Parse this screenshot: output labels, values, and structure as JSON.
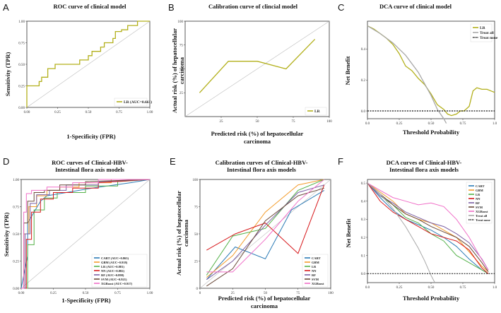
{
  "colors": {
    "olive": "#b3b01c",
    "cart": "#2c7bb6",
    "gbm": "#f39c2b",
    "lr": "#55b24a",
    "nn": "#d7191c",
    "rf": "#7b5fa3",
    "svm": "#6b4a3a",
    "xgb": "#f06fc8",
    "gray": "#a8a8a8",
    "black": "#111111"
  },
  "chart_data": [
    {
      "panel": "A",
      "type": "line",
      "subtype": "roc",
      "title": "ROC curve of clinical model",
      "xlabel": "1-Specificity (FPR)",
      "ylabel": "Sensitivity (TPR)",
      "xlim": [
        0,
        1
      ],
      "ylim": [
        0,
        1
      ],
      "xticks": [
        "0.00",
        "0.25",
        "0.50",
        "0.75",
        "1.00"
      ],
      "yticks": [
        "0.00",
        "0.25",
        "0.50",
        "0.75",
        "1.00"
      ],
      "legend_position": "bottom-right",
      "series": [
        {
          "name": "LR (AUC=0.661)",
          "color_key": "olive",
          "x": [
            0,
            0,
            0.02,
            0.02,
            0.1,
            0.1,
            0.12,
            0.12,
            0.17,
            0.17,
            0.23,
            0.23,
            0.3,
            0.3,
            0.43,
            0.43,
            0.5,
            0.5,
            0.53,
            0.53,
            0.6,
            0.6,
            0.63,
            0.63,
            0.7,
            0.7,
            0.72,
            0.72,
            0.77,
            0.77,
            0.82,
            0.82,
            0.9,
            0.9,
            1
          ],
          "y": [
            0,
            0.25,
            0.25,
            0.25,
            0.25,
            0.3,
            0.3,
            0.35,
            0.35,
            0.45,
            0.45,
            0.5,
            0.5,
            0.5,
            0.5,
            0.55,
            0.55,
            0.6,
            0.6,
            0.65,
            0.65,
            0.7,
            0.7,
            0.75,
            0.75,
            0.8,
            0.8,
            0.88,
            0.88,
            0.9,
            0.9,
            0.95,
            0.95,
            1,
            1
          ]
        }
      ]
    },
    {
      "panel": "B",
      "type": "line",
      "subtype": "calibration",
      "title": "Calibration curve of clincial model",
      "xlabel": "Predicted risk (%) of hepatocellular carcinoma",
      "ylabel": "Actual risk (%) of hepatocellular carcinoma",
      "xlim": [
        0,
        100
      ],
      "ylim": [
        0,
        100
      ],
      "xticks": [
        "25",
        "50",
        "75",
        "100"
      ],
      "yticks": [
        "25",
        "50",
        "75",
        "100"
      ],
      "legend_position": "bottom-right",
      "series": [
        {
          "name": "LR",
          "color_key": "olive",
          "x": [
            10,
            30,
            50,
            70,
            90
          ],
          "y": [
            25,
            58,
            58,
            50,
            81
          ]
        }
      ]
    },
    {
      "panel": "C",
      "type": "line",
      "subtype": "dca",
      "title": "DCA curve of clinical model",
      "xlabel": "Threshold Probability",
      "ylabel": "Net Benefit",
      "xlim": [
        0,
        1
      ],
      "ylim": [
        -0.05,
        0.58
      ],
      "xticks": [
        "0.0",
        "0.25",
        "0.50",
        "0.75",
        "1.0"
      ],
      "yticks": [
        "0.0",
        "0.2",
        "0.4"
      ],
      "legend_position": "top-right",
      "series": [
        {
          "name": "LR",
          "color_key": "olive",
          "x": [
            0,
            0.05,
            0.1,
            0.15,
            0.2,
            0.25,
            0.3,
            0.35,
            0.4,
            0.45,
            0.5,
            0.55,
            0.6,
            0.63,
            0.66,
            0.7,
            0.73,
            0.76,
            0.8,
            0.83,
            0.86,
            0.9,
            0.94,
            1.0
          ],
          "y": [
            0.55,
            0.53,
            0.5,
            0.47,
            0.43,
            0.37,
            0.29,
            0.26,
            0.21,
            0.17,
            0.11,
            0.04,
            0.01,
            -0.02,
            -0.03,
            -0.02,
            0.0,
            0.0,
            0.03,
            0.13,
            0.15,
            0.14,
            0.14,
            0.12
          ]
        },
        {
          "name": "Treat all",
          "color_key": "gray",
          "x": [
            0,
            0.1,
            0.2,
            0.3,
            0.4,
            0.5,
            0.55,
            0.6,
            0.62
          ],
          "y": [
            0.55,
            0.5,
            0.44,
            0.36,
            0.25,
            0.1,
            0.01,
            -0.05,
            -0.08
          ]
        },
        {
          "name": "Treat none",
          "color_key": "black",
          "dashed": true,
          "x": [
            0,
            1
          ],
          "y": [
            0,
            0
          ]
        }
      ]
    },
    {
      "panel": "D",
      "type": "line",
      "subtype": "roc",
      "title": "ROC curves of Clinical-HBV-Intestinal flora axis models",
      "title_lines": [
        "ROC curves of Clinical-HBV-",
        "Intestinal flora axis models"
      ],
      "xlabel": "1-Specificity (FPR)",
      "ylabel": "Sensitivity (TPR)",
      "xlim": [
        0,
        1
      ],
      "ylim": [
        0,
        1
      ],
      "xticks": [
        "0.00",
        "0.25",
        "0.50",
        "0.75",
        "1.00"
      ],
      "yticks": [
        "0.00",
        "0.25",
        "0.50",
        "0.75",
        "1.00"
      ],
      "legend_position": "bottom-right",
      "series": [
        {
          "name": "CART (AUC=0.865)",
          "color_key": "cart",
          "x": [
            0,
            0.05,
            0.05,
            0.1,
            0.15,
            0.2,
            0.35,
            0.55,
            0.85,
            1
          ],
          "y": [
            0,
            0.3,
            0.6,
            0.7,
            0.8,
            0.85,
            0.88,
            0.92,
            0.97,
            1
          ]
        },
        {
          "name": "GBM (AUC=0.918)",
          "color_key": "gbm",
          "x": [
            0,
            0.02,
            0.02,
            0.06,
            0.06,
            0.12,
            0.12,
            0.2,
            0.2,
            0.3,
            0.3,
            0.45,
            0.45,
            0.7,
            0.7,
            1
          ],
          "y": [
            0,
            0,
            0.5,
            0.5,
            0.75,
            0.75,
            0.85,
            0.85,
            0.9,
            0.9,
            0.93,
            0.93,
            0.97,
            0.97,
            1,
            1
          ]
        },
        {
          "name": "LR (AUC=0.881)",
          "color_key": "lr",
          "x": [
            0,
            0.05,
            0.05,
            0.1,
            0.1,
            0.18,
            0.18,
            0.28,
            0.28,
            0.5,
            0.5,
            0.75,
            0.75,
            1
          ],
          "y": [
            0,
            0,
            0.4,
            0.4,
            0.72,
            0.72,
            0.83,
            0.83,
            0.88,
            0.88,
            0.94,
            0.94,
            0.98,
            1
          ]
        },
        {
          "name": "NN (AUC=0.882)",
          "color_key": "nn",
          "x": [
            0,
            0.04,
            0.04,
            0.08,
            0.08,
            0.15,
            0.15,
            0.25,
            0.25,
            0.4,
            0.4,
            0.6,
            0.6,
            1
          ],
          "y": [
            0,
            0,
            0.45,
            0.45,
            0.7,
            0.7,
            0.82,
            0.82,
            0.88,
            0.88,
            0.92,
            0.92,
            0.97,
            1
          ]
        },
        {
          "name": "RF (AUC=0.898)",
          "color_key": "rf",
          "x": [
            0,
            0.03,
            0.03,
            0.07,
            0.07,
            0.12,
            0.12,
            0.22,
            0.22,
            0.35,
            0.35,
            0.6,
            0.6,
            1
          ],
          "y": [
            0,
            0,
            0.5,
            0.5,
            0.78,
            0.78,
            0.86,
            0.86,
            0.9,
            0.9,
            0.95,
            0.95,
            0.98,
            1
          ]
        },
        {
          "name": "SVM (AUC=0.921)",
          "color_key": "svm",
          "x": [
            0,
            0.02,
            0.02,
            0.05,
            0.05,
            0.1,
            0.1,
            0.18,
            0.18,
            0.3,
            0.3,
            0.5,
            0.5,
            1
          ],
          "y": [
            0,
            0,
            0.6,
            0.6,
            0.8,
            0.8,
            0.88,
            0.88,
            0.9,
            0.9,
            0.95,
            0.95,
            0.98,
            1
          ]
        },
        {
          "name": "XGBoost (AUC=0.917)",
          "color_key": "xgb",
          "x": [
            0,
            0.02,
            0.02,
            0.04,
            0.04,
            0.08,
            0.08,
            0.2,
            0.2,
            0.4,
            0.4,
            0.6,
            0.6,
            1
          ],
          "y": [
            0,
            0,
            0.7,
            0.7,
            0.87,
            0.87,
            0.9,
            0.9,
            0.93,
            0.93,
            0.97,
            0.97,
            1,
            1
          ]
        }
      ]
    },
    {
      "panel": "E",
      "type": "line",
      "subtype": "calibration",
      "title": "Calibration curves of Clinical-HBV-Intestinal flora axis models",
      "title_lines": [
        "Calibration curves of Clinical-HBV-",
        "Intestinal flora axis models"
      ],
      "xlabel": "Predicted risk (%) of hepatocellular carcinoma",
      "ylabel": "Actual risk (%) of hepatocellular carcinoma",
      "xlim": [
        0,
        100
      ],
      "ylim": [
        0,
        100
      ],
      "xticks": [
        "0",
        "25",
        "50",
        "75",
        "100"
      ],
      "yticks": [
        "0",
        "25",
        "50",
        "75",
        "100"
      ],
      "legend_position": "bottom-right",
      "series": [
        {
          "name": "CART",
          "color_key": "cart",
          "x": [
            5,
            27,
            50,
            70,
            95
          ],
          "y": [
            8,
            38,
            27,
            72,
            90
          ]
        },
        {
          "name": "GBM",
          "color_key": "gbm",
          "x": [
            5,
            25,
            50,
            75,
            95
          ],
          "y": [
            10,
            30,
            70,
            95,
            100
          ]
        },
        {
          "name": "LR",
          "color_key": "lr",
          "x": [
            5,
            25,
            50,
            75,
            95
          ],
          "y": [
            12,
            48,
            55,
            90,
            100
          ]
        },
        {
          "name": "NN",
          "color_key": "nn",
          "x": [
            5,
            27,
            50,
            75,
            95
          ],
          "y": [
            35,
            50,
            60,
            32,
            95
          ]
        },
        {
          "name": "RF",
          "color_key": "rf",
          "x": [
            5,
            25,
            50,
            75,
            95
          ],
          "y": [
            8,
            25,
            58,
            88,
            95
          ]
        },
        {
          "name": "SVM",
          "color_key": "svm",
          "x": [
            5,
            25,
            50,
            75,
            95
          ],
          "y": [
            2,
            18,
            62,
            85,
            92
          ]
        },
        {
          "name": "XGBoost",
          "color_key": "xgb",
          "x": [
            5,
            25,
            50,
            75,
            95
          ],
          "y": [
            15,
            15,
            45,
            80,
            100
          ]
        }
      ]
    },
    {
      "panel": "F",
      "type": "line",
      "subtype": "dca",
      "title": "DCA curves of Clinical-HBV-Intestinal flora axis models",
      "title_lines": [
        "DCA curves of Clinical-HBV-",
        "Intestinal flora axis models"
      ],
      "xlabel": "Threshold Probability",
      "ylabel": "Net Benefit",
      "xlim": [
        0,
        1
      ],
      "ylim": [
        -0.05,
        0.52
      ],
      "xticks": [
        "0.0",
        "0.25",
        "0.50",
        "0.75",
        "1.0"
      ],
      "yticks": [
        "0.0",
        "0.1",
        "0.2",
        "0.3",
        "0.4",
        "0.5"
      ],
      "legend_position": "top-right",
      "series": [
        {
          "name": "CART",
          "color_key": "cart",
          "x": [
            0,
            0.1,
            0.2,
            0.3,
            0.4,
            0.5,
            0.6,
            0.7,
            0.8,
            0.9,
            0.95
          ],
          "y": [
            0.5,
            0.42,
            0.35,
            0.3,
            0.27,
            0.24,
            0.2,
            0.15,
            0.08,
            0.02,
            0
          ]
        },
        {
          "name": "GBM",
          "color_key": "gbm",
          "x": [
            0,
            0.1,
            0.2,
            0.3,
            0.4,
            0.5,
            0.6,
            0.7,
            0.8,
            0.9,
            0.95
          ],
          "y": [
            0.5,
            0.45,
            0.4,
            0.33,
            0.3,
            0.28,
            0.24,
            0.2,
            0.12,
            0.04,
            0.01
          ]
        },
        {
          "name": "LR",
          "color_key": "lr",
          "x": [
            0,
            0.1,
            0.2,
            0.3,
            0.4,
            0.5,
            0.6,
            0.7,
            0.8,
            0.9,
            0.95
          ],
          "y": [
            0.5,
            0.43,
            0.38,
            0.31,
            0.28,
            0.22,
            0.18,
            0.1,
            0.06,
            0.02,
            0
          ]
        },
        {
          "name": "NN",
          "color_key": "nn",
          "x": [
            0,
            0.1,
            0.2,
            0.3,
            0.4,
            0.5,
            0.6,
            0.7,
            0.8,
            0.9,
            0.95
          ],
          "y": [
            0.5,
            0.4,
            0.34,
            0.3,
            0.26,
            0.22,
            0.2,
            0.18,
            0.13,
            0.03,
            0
          ]
        },
        {
          "name": "RF",
          "color_key": "rf",
          "x": [
            0,
            0.1,
            0.2,
            0.3,
            0.4,
            0.5,
            0.6,
            0.7,
            0.8,
            0.9,
            0.95
          ],
          "y": [
            0.5,
            0.43,
            0.39,
            0.34,
            0.31,
            0.28,
            0.26,
            0.22,
            0.17,
            0.08,
            0.02
          ]
        },
        {
          "name": "SVM",
          "color_key": "svm",
          "x": [
            0,
            0.1,
            0.2,
            0.3,
            0.4,
            0.5,
            0.6,
            0.7,
            0.8,
            0.9,
            0.95
          ],
          "y": [
            0.5,
            0.44,
            0.38,
            0.33,
            0.3,
            0.26,
            0.23,
            0.2,
            0.15,
            0.06,
            0.01
          ]
        },
        {
          "name": "XGBoost",
          "color_key": "xgb",
          "x": [
            0,
            0.1,
            0.2,
            0.3,
            0.4,
            0.5,
            0.6,
            0.7,
            0.8,
            0.88,
            0.95
          ],
          "y": [
            0.5,
            0.46,
            0.42,
            0.4,
            0.38,
            0.39,
            0.37,
            0.3,
            0.2,
            0.1,
            0.02
          ]
        },
        {
          "name": "Treat all",
          "color_key": "gray",
          "x": [
            0,
            0.1,
            0.2,
            0.3,
            0.4,
            0.45,
            0.5,
            0.53
          ],
          "y": [
            0.5,
            0.44,
            0.36,
            0.26,
            0.14,
            0.07,
            -0.01,
            -0.05
          ]
        },
        {
          "name": "Treat none",
          "color_key": "black",
          "dashed": true,
          "x": [
            0,
            1
          ],
          "y": [
            0,
            0
          ]
        }
      ]
    }
  ]
}
